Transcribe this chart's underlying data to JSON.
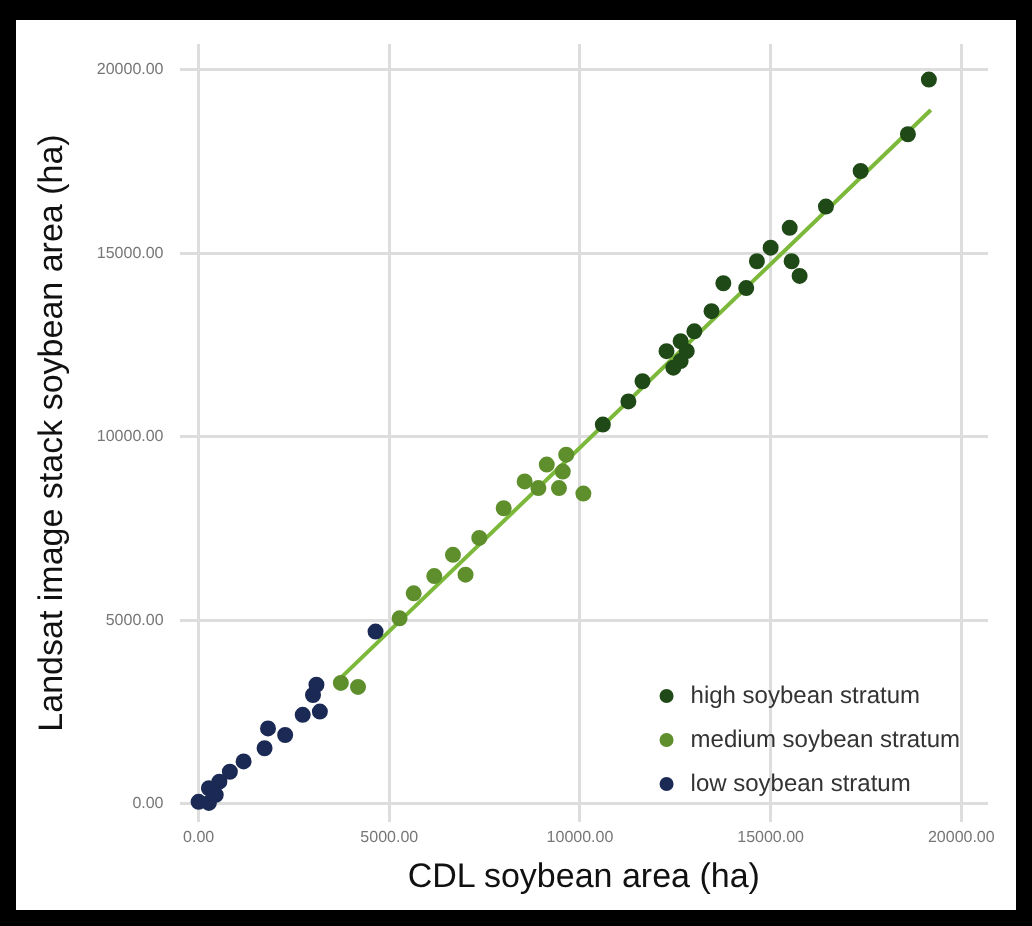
{
  "chart_data": {
    "type": "scatter",
    "xlabel": "CDL soybean area (ha)",
    "ylabel": "Landsat image stack soybean area (ha)",
    "xlim": [
      -500,
      20700
    ],
    "ylim": [
      -500,
      20700
    ],
    "xticks": [
      {
        "value": 0,
        "label": "0.00"
      },
      {
        "value": 5000,
        "label": "5000.00"
      },
      {
        "value": 10000,
        "label": "10000.00"
      },
      {
        "value": 15000,
        "label": "15000.00"
      },
      {
        "value": 20000,
        "label": "20000.00"
      }
    ],
    "yticks": [
      {
        "value": 0,
        "label": "0.00"
      },
      {
        "value": 5000,
        "label": "5000.00"
      },
      {
        "value": 10000,
        "label": "10000.00"
      },
      {
        "value": 15000,
        "label": "15000.00"
      },
      {
        "value": 20000,
        "label": "20000.00"
      }
    ],
    "grid": true,
    "legend": "bottom right",
    "marker": "circle",
    "series": [
      {
        "name": "high soybean stratum",
        "color": "#1f4a17",
        "x": [
          19150,
          18600,
          17360,
          16450,
          15500,
          15000,
          15550,
          15760,
          14640,
          14360,
          13760,
          13450,
          13000,
          12640,
          12800,
          12640,
          12270,
          12450,
          11640,
          11270,
          10600
        ],
        "values": [
          19730,
          18240,
          17240,
          16270,
          15690,
          15150,
          14780,
          14380,
          14780,
          14050,
          14180,
          13420,
          12870,
          12600,
          12330,
          12060,
          12330,
          11880,
          11510,
          10960,
          10330
        ]
      },
      {
        "name": "medium soybean stratum",
        "color": "#5e8f2c",
        "x": [
          9640,
          9130,
          9550,
          8550,
          8910,
          9450,
          10090,
          8000,
          7360,
          6670,
          6180,
          7000,
          5640,
          5270,
          4180,
          3730
        ],
        "values": [
          9510,
          9240,
          9050,
          8780,
          8600,
          8600,
          8450,
          8050,
          7240,
          6780,
          6200,
          6240,
          5730,
          5050,
          3180,
          3290
        ]
      },
      {
        "name": "low soybean stratum",
        "color": "#1b2a55",
        "x": [
          4640,
          3090,
          3180,
          2730,
          3000,
          2270,
          1820,
          1730,
          1180,
          820,
          545,
          270,
          0,
          270,
          450
        ],
        "values": [
          4690,
          3240,
          2510,
          2420,
          2960,
          1870,
          2050,
          1510,
          1150,
          870,
          600,
          420,
          50,
          20,
          240
        ]
      },
      {
        "type": "line",
        "color": "#7cb83a",
        "marker": "none",
        "x": [
          3700,
          19200
        ],
        "values": [
          3400,
          18900
        ]
      }
    ]
  }
}
